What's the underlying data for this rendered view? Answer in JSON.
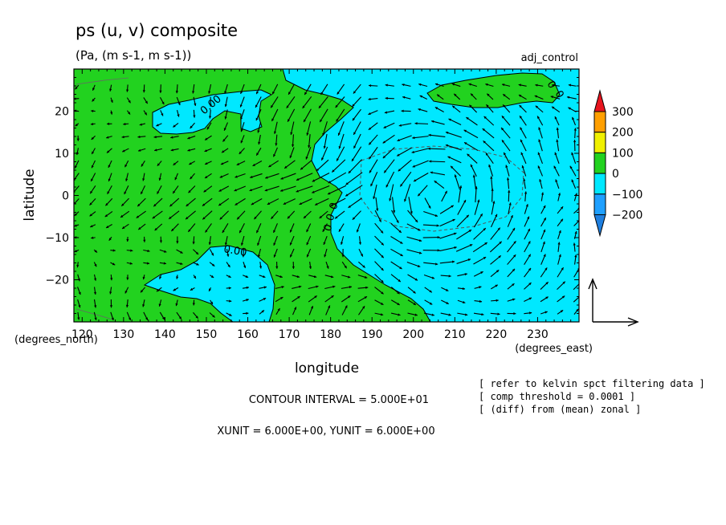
{
  "chart_data": {
    "type": "heatmap",
    "title": "ps (u, v) composite",
    "subtitle": "(Pa, (m s-1, m s-1))",
    "run_label": "adj_control",
    "xlabel": "longitude",
    "ylabel": "latitude",
    "x_unit_label": "(degrees_east)",
    "y_unit_label": "(degrees_north)",
    "xlim": [
      118,
      240
    ],
    "ylim": [
      -30,
      30
    ],
    "x_ticks": [
      120,
      130,
      140,
      150,
      160,
      170,
      180,
      190,
      200,
      210,
      220,
      230
    ],
    "y_ticks": [
      -20,
      -10,
      0,
      10,
      20
    ],
    "colorbar": {
      "levels": [
        -200,
        -100,
        0,
        100,
        200,
        300
      ],
      "labels": [
        "300",
        "200",
        "100",
        "0",
        "−100",
        "−200"
      ],
      "colors": {
        "below_-200": "#1f7fdf",
        "-200_-100": "#1fa0ff",
        "-100_0": "#00e8ff",
        "0_100": "#22d21f",
        "100_200": "#f0f000",
        "200_300": "#ff9f00",
        "above_300": "#e8141e"
      }
    },
    "regions": [
      {
        "name": "negative ps (-100 to 0)",
        "value_range": [
          -100,
          0
        ],
        "color": "#00e8ff",
        "extent": "east of ~165E at 30N, east of ~185E near equator, east of ~203E at 30S"
      },
      {
        "name": "positive ps (0 to 100)",
        "value_range": [
          0,
          100
        ],
        "color": "#22d21f",
        "extent": "west Pacific 118E-185E"
      },
      {
        "name": "positive blob north",
        "value_range": [
          0,
          100
        ],
        "color": "#22d21f",
        "extent": "206E-232E, 20N-28N"
      },
      {
        "name": "negative blob NW",
        "value_range": [
          -100,
          0
        ],
        "color": "#00e8ff",
        "extent": "137E-163E, 15N-25N"
      },
      {
        "name": "negative blob SW",
        "value_range": [
          -100,
          0
        ],
        "color": "#00e8ff",
        "extent": "135E-165E, -29S to -12S"
      }
    ],
    "contour_labels": [
      "0.00",
      "0.00",
      "0",
      "0",
      "0",
      "0",
      "0"
    ],
    "wind_field": {
      "description": "anomalous (u, v) vectors; strong westward convergence toward ~183E, 0N; anticyclonic gyre centered ~205E, 0N",
      "reference_vector": {
        "xunit": 6.0,
        "yunit": 6.0
      }
    },
    "footer": {
      "contour_interval": "CONTOUR INTERVAL = 5.000E+01",
      "vector_units": "XUNIT = 6.000E+00, YUNIT = 6.000E+00",
      "notes": [
        "[ refer to kelvin spct filtering data ]",
        "[ comp threshold = 0.0001 ]",
        "[ (diff) from (mean) zonal ]"
      ]
    }
  }
}
